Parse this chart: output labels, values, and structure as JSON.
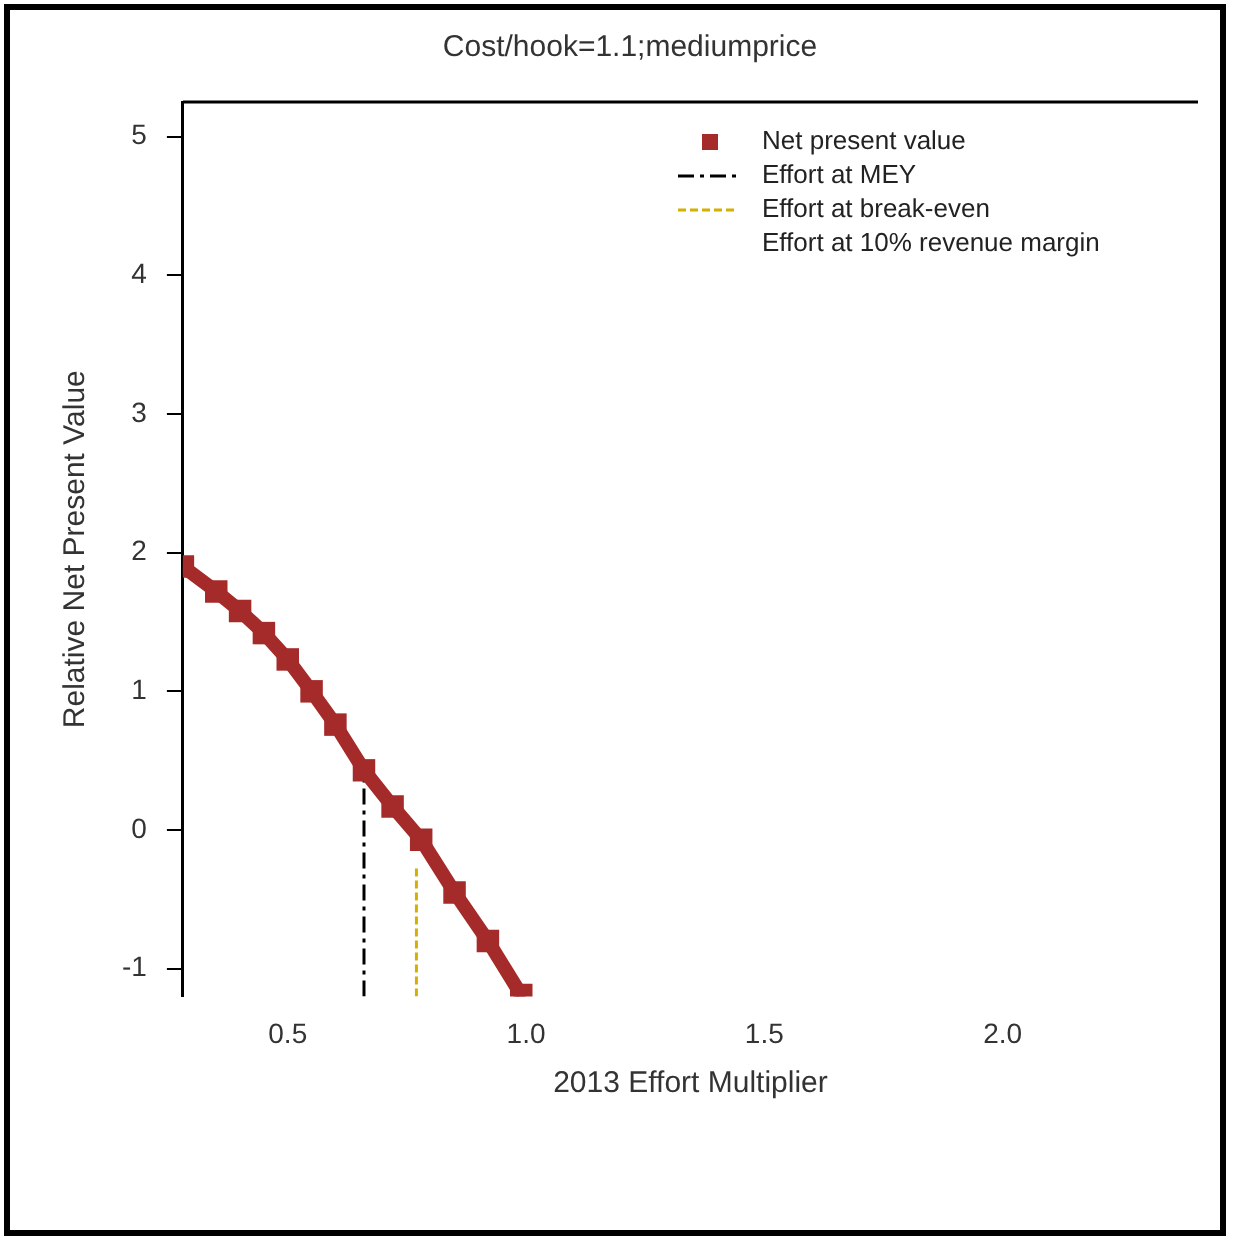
{
  "chart_data": {
    "type": "line",
    "title": "Cost/hook=1.1;mediumprice",
    "xlabel": "2013 Effort Multiplier",
    "ylabel": "Relative Net Present Value",
    "xlim": [
      0.28,
      2.41
    ],
    "ylim": [
      -1.2,
      5.25
    ],
    "xticks": [
      0.5,
      {
        "value": 1,
        "label": "1.0"
      },
      1.5,
      {
        "value": 2,
        "label": "2.0"
      }
    ],
    "yticks": [
      -1,
      0,
      1,
      2,
      3,
      4,
      5
    ],
    "legend": "top right",
    "grid": false,
    "series": [
      {
        "name": "Net present value",
        "color": "#a52a2a",
        "marker": "square",
        "x": [
          0.28,
          0.35,
          0.4,
          0.45,
          0.5,
          0.55,
          0.6,
          0.66,
          0.72,
          0.78,
          0.85,
          0.92,
          0.99
        ],
        "values": [
          1.9,
          1.72,
          1.58,
          1.42,
          1.23,
          1.0,
          0.76,
          0.43,
          0.17,
          -0.07,
          -0.45,
          -0.8,
          -1.19
        ]
      },
      {
        "name": "Effort at MEY",
        "color": "#000000",
        "line_style": "dashdot",
        "x": [
          0.66,
          0.66
        ],
        "values": [
          -1.2,
          0.43
        ]
      },
      {
        "name": "Effort at break-even",
        "color": "#d4b000",
        "line_style": "dashed",
        "x": [
          0.77,
          0.77
        ],
        "values": [
          -1.2,
          -0.25
        ]
      },
      {
        "name": "Effort at 10% revenue margin"
      }
    ]
  }
}
